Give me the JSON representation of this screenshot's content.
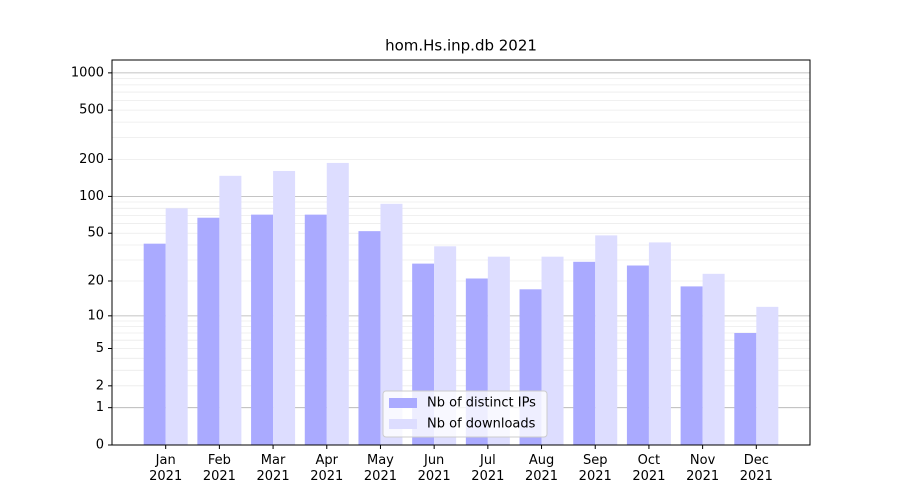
{
  "chart_data": {
    "type": "bar",
    "title": "hom.Hs.inp.db 2021",
    "categories": [
      "Jan\n2021",
      "Feb\n2021",
      "Mar\n2021",
      "Apr\n2021",
      "May\n2021",
      "Jun\n2021",
      "Jul\n2021",
      "Aug\n2021",
      "Sep\n2021",
      "Oct\n2021",
      "Nov\n2021",
      "Dec\n2021"
    ],
    "series": [
      {
        "name": "Nb of distinct IPs",
        "color": "#aaaaff",
        "values": [
          41,
          67,
          71,
          71,
          52,
          28,
          21,
          17,
          29,
          27,
          18,
          7
        ]
      },
      {
        "name": "Nb of downloads",
        "color": "#ddddff",
        "values": [
          80,
          147,
          161,
          187,
          87,
          39,
          32,
          32,
          48,
          42,
          23,
          12
        ]
      }
    ],
    "yscale": "log1p",
    "ylim": [
      0,
      1270
    ],
    "yticks": [
      0,
      1,
      2,
      5,
      10,
      20,
      50,
      100,
      200,
      500,
      1000
    ],
    "grid": true,
    "legend": "lower center"
  }
}
